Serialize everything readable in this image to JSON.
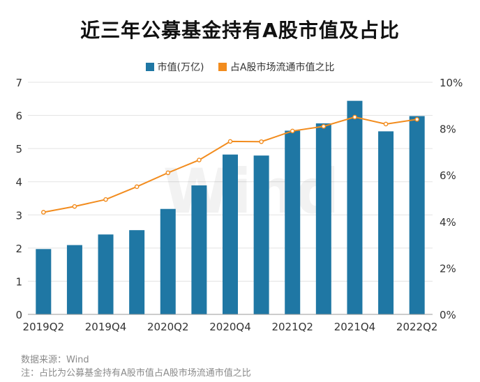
{
  "title": "近三年公募基金持有A股市值及占比",
  "legend": [
    {
      "label": "市值(万亿)",
      "color": "#1f77a4"
    },
    {
      "label": "占A股市场流通市值之比",
      "color": "#f28c1e"
    }
  ],
  "watermark": "Wind",
  "footer": {
    "source": "数据来源：Wind",
    "note": "注：占比为公募基金持有A股市值占A股市场流通市值之比"
  },
  "chart_data": {
    "type": "bar",
    "categories": [
      "2019Q2",
      "2019Q3",
      "2019Q4",
      "2020Q1",
      "2020Q2",
      "2020Q3",
      "2020Q4",
      "2021Q1",
      "2021Q2",
      "2021Q3",
      "2021Q4",
      "2022Q1",
      "2022Q2"
    ],
    "x_tick_labels": [
      "2019Q2",
      "2019Q4",
      "2020Q2",
      "2020Q4",
      "2021Q2",
      "2021Q4",
      "2022Q2"
    ],
    "series": [
      {
        "name": "市值(万亿)",
        "type": "bar",
        "axis": "left",
        "color": "#1f77a4",
        "values": [
          1.97,
          2.09,
          2.41,
          2.54,
          3.18,
          3.89,
          4.82,
          4.79,
          5.54,
          5.76,
          6.44,
          5.52,
          5.98
        ]
      },
      {
        "name": "占A股市场流通市值之比",
        "type": "line",
        "axis": "right",
        "color": "#f28c1e",
        "values": [
          4.4,
          4.65,
          4.95,
          5.5,
          6.1,
          6.65,
          7.45,
          7.44,
          7.9,
          8.1,
          8.5,
          8.2,
          8.4
        ]
      }
    ],
    "y_left": {
      "min": 0,
      "max": 7,
      "ticks": [
        0,
        1,
        2,
        3,
        4,
        5,
        6,
        7
      ]
    },
    "y_right": {
      "min": 0,
      "max": 10,
      "ticks": [
        "0%",
        "2%",
        "4%",
        "6%",
        "8%",
        "10%"
      ]
    },
    "grid": true,
    "legend_position": "top"
  }
}
